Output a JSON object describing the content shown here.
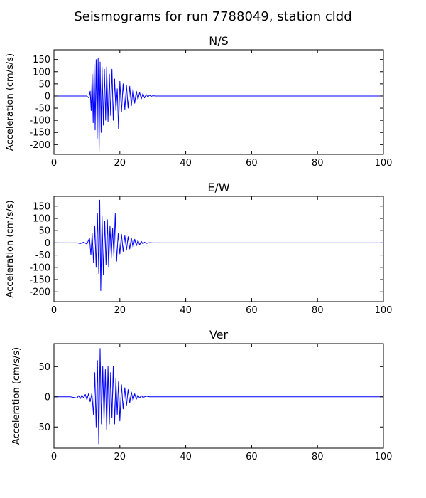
{
  "figure": {
    "title": "Seismograms for run 7788049, station cldd"
  },
  "chart_data": [
    {
      "type": "line",
      "title": "N/S",
      "xlabel": "",
      "ylabel": "Acceleration (cm/s/s)",
      "xlim": [
        0,
        100
      ],
      "ylim": [
        -240,
        190
      ],
      "xticks": [
        0,
        20,
        40,
        60,
        80,
        100
      ],
      "yticks": [
        150,
        100,
        50,
        0,
        -50,
        -100,
        -150,
        -200
      ],
      "grid": false,
      "color": "#0000ff",
      "series": [
        {
          "x": [
            0,
            10,
            10.6,
            11,
            11.3,
            11.6,
            11.9,
            12.2,
            12.5,
            12.8,
            13.1,
            13.4,
            13.7,
            14.0,
            14.3,
            14.6,
            15.0,
            15.3,
            15.7,
            16.0,
            16.4,
            16.8,
            17.2,
            17.6,
            18.0,
            18.4,
            18.8,
            19.2,
            19.6,
            20.0,
            20.5,
            21.0,
            21.5,
            22.0,
            22.5,
            23.0,
            23.5,
            24.0,
            24.5,
            25.0,
            25.5,
            26.0,
            26.5,
            27.0,
            27.5,
            28.0,
            28.5,
            29.0,
            29.5,
            30.0,
            31.0,
            100
          ],
          "y": [
            0,
            0,
            -8,
            20,
            -60,
            90,
            -110,
            130,
            -140,
            150,
            -175,
            155,
            -225,
            140,
            -150,
            120,
            -120,
            110,
            -100,
            120,
            -105,
            90,
            -80,
            110,
            -100,
            70,
            -60,
            30,
            -135,
            60,
            -65,
            50,
            -55,
            45,
            -50,
            40,
            -40,
            30,
            -30,
            20,
            -15,
            15,
            -12,
            10,
            -8,
            6,
            -4,
            3,
            -2,
            1,
            0,
            0
          ]
        }
      ]
    },
    {
      "type": "line",
      "title": "E/W",
      "xlabel": "",
      "ylabel": "Acceleration (cm/s/s)",
      "xlim": [
        0,
        100
      ],
      "ylim": [
        -240,
        190
      ],
      "xticks": [
        0,
        20,
        40,
        60,
        80,
        100
      ],
      "yticks": [
        150,
        100,
        50,
        0,
        -50,
        -100,
        -150,
        -200
      ],
      "grid": false,
      "color": "#0000ff",
      "series": [
        {
          "x": [
            0,
            7,
            8,
            9,
            10,
            10.8,
            11.2,
            11.6,
            12.0,
            12.4,
            12.8,
            13.2,
            13.6,
            13.9,
            14.2,
            14.6,
            15.0,
            15.4,
            15.8,
            16.2,
            16.6,
            17.0,
            17.4,
            17.8,
            18.2,
            18.6,
            19.0,
            19.5,
            20.0,
            20.5,
            21.0,
            21.5,
            22.0,
            22.5,
            23.0,
            23.5,
            24.0,
            24.5,
            25.0,
            25.5,
            26.0,
            26.5,
            27.0,
            27.5,
            28.0,
            29.0,
            30.0,
            100
          ],
          "y": [
            0,
            0,
            -3,
            3,
            -5,
            20,
            -50,
            40,
            -80,
            70,
            -100,
            120,
            -125,
            175,
            -195,
            110,
            -130,
            90,
            -90,
            95,
            -100,
            70,
            -60,
            60,
            -55,
            120,
            -75,
            40,
            -45,
            35,
            -35,
            30,
            -30,
            25,
            -25,
            20,
            -18,
            15,
            -12,
            10,
            -8,
            6,
            -4,
            3,
            -2,
            1,
            0,
            0
          ]
        }
      ]
    },
    {
      "type": "line",
      "title": "Ver",
      "xlabel": "",
      "ylabel": "Acceleration (cm/s/s)",
      "xlim": [
        0,
        100
      ],
      "ylim": [
        -85,
        88
      ],
      "xticks": [
        0,
        20,
        40,
        60,
        80,
        100
      ],
      "yticks": [
        50,
        0,
        -50
      ],
      "grid": false,
      "color": "#0000ff",
      "series": [
        {
          "x": [
            0,
            5,
            7,
            7.5,
            8,
            8.5,
            9,
            9.5,
            10,
            10.5,
            11,
            11.5,
            12,
            12.4,
            12.8,
            13.2,
            13.6,
            14.0,
            14.4,
            14.8,
            15.2,
            15.6,
            16.0,
            16.4,
            16.8,
            17.2,
            17.6,
            18.0,
            18.4,
            18.8,
            19.2,
            19.6,
            20.0,
            20.5,
            21.0,
            21.5,
            22.0,
            22.5,
            23.0,
            23.5,
            24.0,
            24.5,
            25.0,
            25.5,
            26.0,
            26.5,
            27.0,
            28.0,
            29.0,
            30.0,
            100
          ],
          "y": [
            0,
            0,
            -2,
            2,
            -3,
            3,
            -2,
            4,
            -5,
            5,
            -8,
            6,
            -30,
            40,
            -50,
            60,
            -78,
            80,
            -45,
            50,
            -40,
            45,
            -55,
            50,
            -45,
            40,
            -35,
            50,
            -45,
            30,
            -30,
            25,
            -40,
            20,
            -20,
            15,
            -15,
            12,
            -10,
            8,
            -6,
            5,
            -4,
            3,
            -2,
            2,
            -1,
            1,
            0,
            0,
            0
          ]
        }
      ]
    }
  ]
}
